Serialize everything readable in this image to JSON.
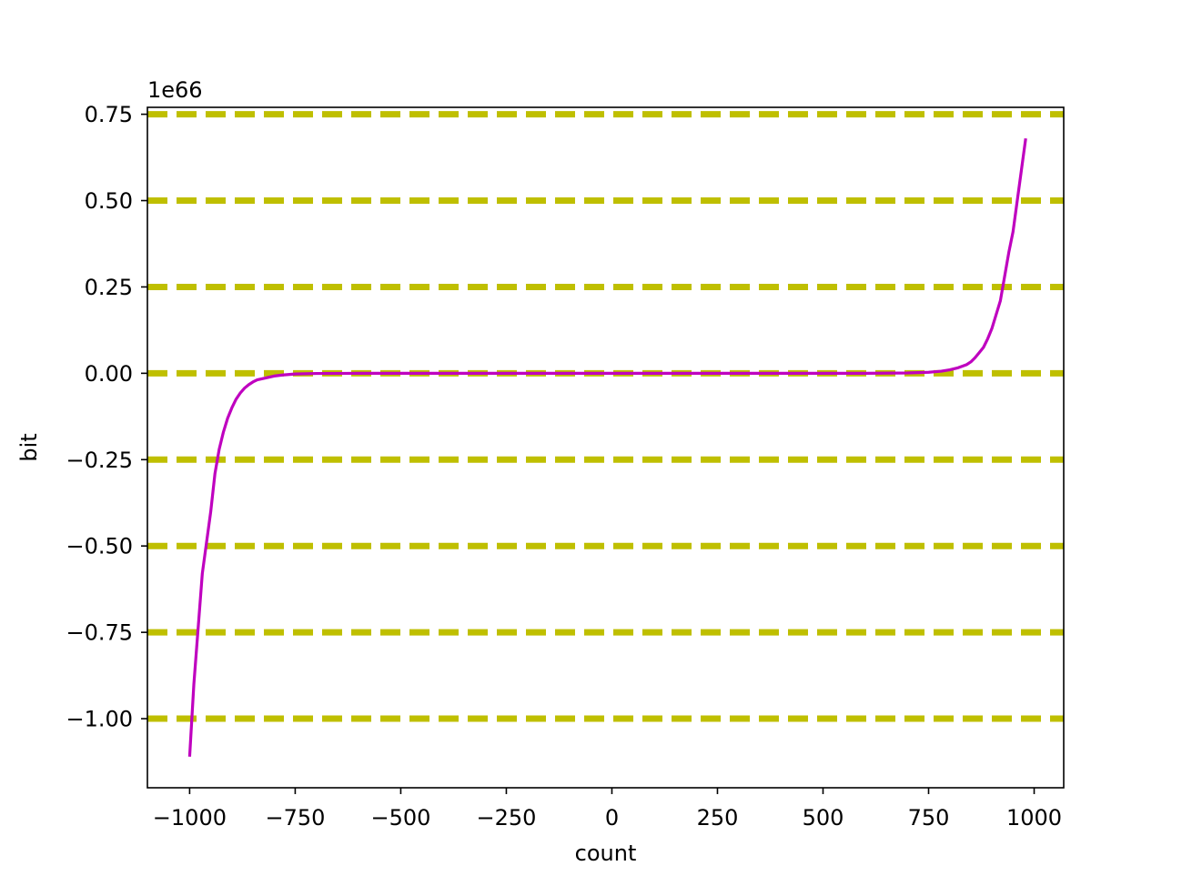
{
  "chart_data": {
    "type": "line",
    "title": "",
    "xlabel": "count",
    "ylabel": "bit",
    "y_offset_label": "1e66",
    "xlim": [
      -1100,
      1070
    ],
    "ylim": [
      -1.2,
      0.77
    ],
    "y_scale_exponent": 66,
    "grid": {
      "x": false,
      "y": true,
      "style": "dashed",
      "color": "#bfbf00"
    },
    "x_ticks": [
      {
        "value": -1000,
        "label": "−1000"
      },
      {
        "value": -750,
        "label": "−750"
      },
      {
        "value": -500,
        "label": "−500"
      },
      {
        "value": -250,
        "label": "−250"
      },
      {
        "value": 0,
        "label": "0"
      },
      {
        "value": 250,
        "label": "250"
      },
      {
        "value": 500,
        "label": "500"
      },
      {
        "value": 750,
        "label": "750"
      },
      {
        "value": 1000,
        "label": "1000"
      }
    ],
    "y_ticks": [
      {
        "value": 0.75,
        "label": "0.75"
      },
      {
        "value": 0.5,
        "label": "0.50"
      },
      {
        "value": 0.25,
        "label": "0.25"
      },
      {
        "value": 0.0,
        "label": "0.00"
      },
      {
        "value": -0.25,
        "label": "−0.25"
      },
      {
        "value": -0.5,
        "label": "−0.50"
      },
      {
        "value": -0.75,
        "label": "−0.75"
      },
      {
        "value": -1.0,
        "label": "−1.00"
      }
    ],
    "series": [
      {
        "color": "#bf00bf",
        "x": [
          -1000,
          -990,
          -970,
          -950,
          -940,
          -930,
          -920,
          -910,
          -900,
          -890,
          -880,
          -870,
          -860,
          -850,
          -840,
          -800,
          -780,
          -750,
          -700,
          -600,
          -500,
          0,
          500,
          600,
          700,
          750,
          780,
          800,
          820,
          840,
          850,
          860,
          870,
          880,
          890,
          900,
          910,
          920,
          930,
          940,
          950,
          960,
          970,
          980
        ],
        "y": [
          -1.11,
          -0.9,
          -0.58,
          -0.4,
          -0.29,
          -0.22,
          -0.17,
          -0.13,
          -0.1,
          -0.075,
          -0.057,
          -0.043,
          -0.033,
          -0.025,
          -0.019,
          -0.008,
          -0.005,
          -0.002,
          -0.0005,
          0,
          0,
          0,
          0,
          0,
          0.001,
          0.003,
          0.006,
          0.01,
          0.016,
          0.025,
          0.033,
          0.045,
          0.06,
          0.075,
          0.1,
          0.13,
          0.17,
          0.21,
          0.28,
          0.35,
          0.41,
          0.5,
          0.59,
          0.68
        ]
      }
    ]
  }
}
